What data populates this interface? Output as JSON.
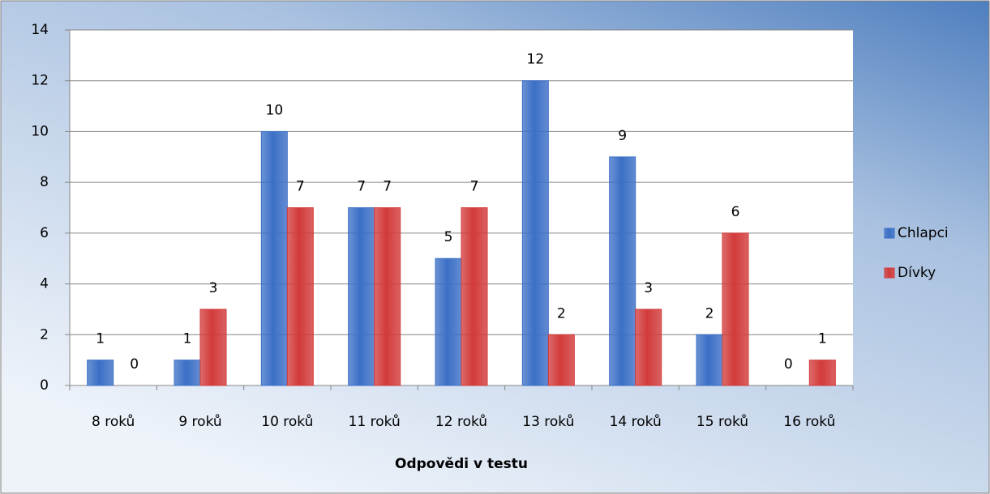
{
  "chart_data": {
    "type": "bar",
    "categories": [
      "8 roků",
      "9 roků",
      "10 roků",
      "11 roků",
      "12 roků",
      "13 roků",
      "14 roků",
      "15 roků",
      "16 roků"
    ],
    "series": [
      {
        "name": "Chlapci",
        "color": "#3b6fc6",
        "values": [
          1,
          1,
          10,
          7,
          5,
          12,
          9,
          2,
          0
        ]
      },
      {
        "name": "Dívky",
        "color": "#d23a3a",
        "values": [
          0,
          3,
          7,
          7,
          7,
          2,
          3,
          6,
          1
        ]
      }
    ],
    "x_label": "Odpovědi v testu",
    "ylim": [
      0,
      14
    ],
    "yticks": [
      0,
      2,
      4,
      6,
      8,
      10,
      12,
      14
    ],
    "grid": true,
    "legend": "right",
    "data_labels": true
  }
}
